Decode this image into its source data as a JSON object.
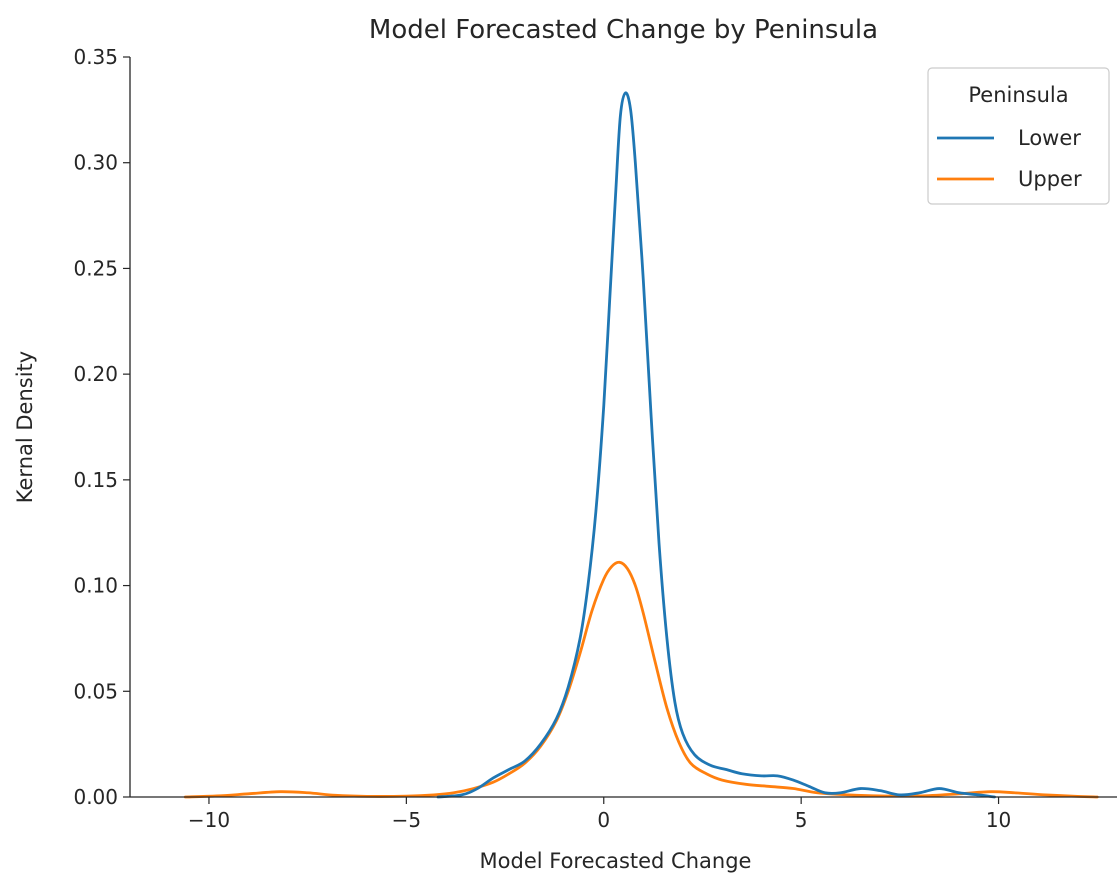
{
  "chart_data": {
    "type": "line",
    "title": "Model Forecasted Change by Peninsula",
    "xlabel": "Model Forecasted Change",
    "ylabel": "Kernal Density",
    "xlim": [
      -12,
      13
    ],
    "ylim": [
      0,
      0.35
    ],
    "xticks": [
      -10,
      -5,
      0,
      5,
      10
    ],
    "xtick_labels": [
      "−10",
      "−5",
      "0",
      "5",
      "10"
    ],
    "yticks": [
      0,
      0.05,
      0.1,
      0.15,
      0.2,
      0.25,
      0.3,
      0.35
    ],
    "ytick_labels": [
      "0.00",
      "0.05",
      "0.10",
      "0.15",
      "0.20",
      "0.25",
      "0.30",
      "0.35"
    ],
    "grid": false,
    "legend": {
      "title": "Peninsula",
      "position": "top-right"
    },
    "series": [
      {
        "name": "Lower",
        "color": "#1f77b4",
        "points": [
          [
            -4.2,
            0.0
          ],
          [
            -3.6,
            0.001
          ],
          [
            -3.2,
            0.004
          ],
          [
            -2.8,
            0.009
          ],
          [
            -2.4,
            0.013
          ],
          [
            -2.0,
            0.017
          ],
          [
            -1.6,
            0.025
          ],
          [
            -1.2,
            0.037
          ],
          [
            -0.9,
            0.052
          ],
          [
            -0.6,
            0.075
          ],
          [
            -0.4,
            0.1
          ],
          [
            -0.2,
            0.135
          ],
          [
            0.0,
            0.185
          ],
          [
            0.15,
            0.235
          ],
          [
            0.3,
            0.285
          ],
          [
            0.42,
            0.322
          ],
          [
            0.55,
            0.333
          ],
          [
            0.68,
            0.325
          ],
          [
            0.8,
            0.3
          ],
          [
            1.0,
            0.245
          ],
          [
            1.2,
            0.18
          ],
          [
            1.4,
            0.12
          ],
          [
            1.6,
            0.075
          ],
          [
            1.8,
            0.045
          ],
          [
            2.0,
            0.03
          ],
          [
            2.3,
            0.02
          ],
          [
            2.7,
            0.015
          ],
          [
            3.1,
            0.013
          ],
          [
            3.5,
            0.011
          ],
          [
            4.0,
            0.01
          ],
          [
            4.4,
            0.01
          ],
          [
            4.8,
            0.008
          ],
          [
            5.2,
            0.005
          ],
          [
            5.6,
            0.002
          ],
          [
            6.0,
            0.002
          ],
          [
            6.5,
            0.004
          ],
          [
            7.0,
            0.003
          ],
          [
            7.5,
            0.001
          ],
          [
            8.0,
            0.002
          ],
          [
            8.5,
            0.004
          ],
          [
            9.0,
            0.002
          ],
          [
            9.5,
            0.001
          ],
          [
            9.9,
            0.0
          ]
        ]
      },
      {
        "name": "Upper",
        "color": "#ff7f0e",
        "points": [
          [
            -10.6,
            0.0
          ],
          [
            -9.8,
            0.0005
          ],
          [
            -9.0,
            0.0015
          ],
          [
            -8.2,
            0.0025
          ],
          [
            -7.5,
            0.002
          ],
          [
            -6.8,
            0.0008
          ],
          [
            -6.0,
            0.0003
          ],
          [
            -5.0,
            0.0004
          ],
          [
            -4.3,
            0.001
          ],
          [
            -3.8,
            0.002
          ],
          [
            -3.3,
            0.004
          ],
          [
            -2.8,
            0.007
          ],
          [
            -2.4,
            0.011
          ],
          [
            -2.0,
            0.016
          ],
          [
            -1.6,
            0.024
          ],
          [
            -1.2,
            0.036
          ],
          [
            -0.9,
            0.05
          ],
          [
            -0.6,
            0.068
          ],
          [
            -0.3,
            0.088
          ],
          [
            0.0,
            0.103
          ],
          [
            0.2,
            0.109
          ],
          [
            0.4,
            0.111
          ],
          [
            0.6,
            0.108
          ],
          [
            0.8,
            0.1
          ],
          [
            1.0,
            0.087
          ],
          [
            1.3,
            0.064
          ],
          [
            1.6,
            0.042
          ],
          [
            1.9,
            0.026
          ],
          [
            2.2,
            0.016
          ],
          [
            2.6,
            0.011
          ],
          [
            3.0,
            0.008
          ],
          [
            3.6,
            0.006
          ],
          [
            4.2,
            0.005
          ],
          [
            4.8,
            0.004
          ],
          [
            5.4,
            0.002
          ],
          [
            6.2,
            0.001
          ],
          [
            7.0,
            0.0005
          ],
          [
            8.0,
            0.0005
          ],
          [
            9.0,
            0.0015
          ],
          [
            9.8,
            0.0025
          ],
          [
            10.4,
            0.002
          ],
          [
            11.2,
            0.001
          ],
          [
            12.0,
            0.0003
          ],
          [
            12.5,
            0.0
          ]
        ]
      }
    ]
  }
}
